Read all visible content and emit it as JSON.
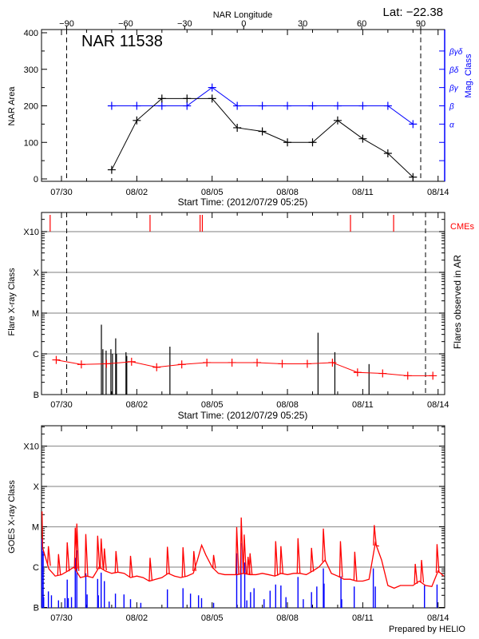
{
  "header": {
    "lat_label": "Lat: −22.38"
  },
  "chart_data": [
    {
      "type": "line",
      "title": "NAR 11538",
      "top_axis_label": "NAR Longitude",
      "top_ticks": [
        -90,
        -60,
        -30,
        0,
        30,
        60,
        90
      ],
      "limb_longitudes": [
        -90,
        90
      ],
      "xlabel": "Start Time: (2012/07/29 05:25)",
      "x_ticks": [
        "07/30",
        "08/02",
        "08/05",
        "08/08",
        "08/11",
        "08/14"
      ],
      "ylabel": "NAR Area",
      "ylim": [
        0,
        400
      ],
      "y_ticks": [
        0,
        100,
        200,
        300,
        400
      ],
      "y2label": "Mag. Class",
      "y2_ticks": [
        "α",
        "β",
        "βγ",
        "βδ",
        "βγδ"
      ],
      "colors": {
        "area": "#000000",
        "mag": "#0000ff"
      },
      "x": [
        "08-01 00:00",
        "08-02 00:00",
        "08-03 00:00",
        "08-04 00:00",
        "08-05 00:00",
        "08-06 00:00",
        "08-07 00:00",
        "08-08 00:00",
        "08-09 00:00",
        "08-10 00:00",
        "08-11 00:00",
        "08-12 00:00",
        "08-13 00:00"
      ],
      "series": [
        {
          "key": "area",
          "values": [
            25,
            160,
            220,
            220,
            220,
            140,
            130,
            100,
            100,
            160,
            110,
            70,
            5
          ]
        },
        {
          "key": "mag",
          "values": [
            "β",
            "β",
            "β",
            "β",
            "βγ",
            "β",
            "β",
            "β",
            "β",
            "β",
            "β",
            "β",
            "α"
          ]
        }
      ]
    },
    {
      "type": "line",
      "xlabel": "Start Time: (2012/07/29 05:25)",
      "x_ticks": [
        "07/30",
        "08/02",
        "08/05",
        "08/08",
        "08/11",
        "08/14"
      ],
      "ylabel": "Flare X-ray Class",
      "y2label": "Flares observed in AR",
      "cme_label": "CMEs",
      "y_scale": "log",
      "y_levels": [
        {
          "label": "B",
          "flux": 1e-07
        },
        {
          "label": "C",
          "flux": 1e-06
        },
        {
          "label": "M",
          "flux": 1e-05
        },
        {
          "label": "X",
          "flux": 0.0001
        },
        {
          "label": "X10",
          "flux": 0.001
        }
      ],
      "colors": {
        "background": "#ff0000",
        "flares": "#000000",
        "cme": "#ff0000",
        "grid": "#999999"
      },
      "limb_times": [
        "07-30 05:00",
        "08-13 12:00"
      ],
      "cmes": [
        "07-29 13:10",
        "08-02 12:40",
        "08-04 12:30",
        "08-04 14:40",
        "08-10 12:15",
        "08-12 05:30"
      ],
      "background": {
        "x": [
          "07-29 19:00",
          "07-30 19:00",
          "07-31 19:00",
          "08-01 19:00",
          "08-02 19:00",
          "08-03 19:00",
          "08-04 19:00",
          "08-05 19:00",
          "08-06 19:00",
          "08-07 19:00",
          "08-08 19:00",
          "08-09 19:00",
          "08-10 19:00",
          "08-11 19:00",
          "08-12 19:00",
          "08-13 19:00"
        ],
        "flux": [
          7.1e-07,
          5.5e-07,
          5.7e-07,
          6.4e-07,
          4.7e-07,
          5.5e-07,
          6.1e-07,
          6.1e-07,
          6.1e-07,
          5.7e-07,
          5.7e-07,
          6.1e-07,
          3.5e-07,
          3.3e-07,
          2.9e-07,
          2.9e-07
        ]
      },
      "flares": [
        {
          "t": "07-31 14:10",
          "flux": 5.2e-06
        },
        {
          "t": "07-31 15:35",
          "flux": 1.3e-06
        },
        {
          "t": "07-31 18:40",
          "flux": 1.2e-06
        },
        {
          "t": "07-31 23:15",
          "flux": 1.3e-06
        },
        {
          "t": "08-01 00:45",
          "flux": 1e-06
        },
        {
          "t": "08-01 03:50",
          "flux": 2.4e-06
        },
        {
          "t": "08-01 04:35",
          "flux": 1e-06
        },
        {
          "t": "08-01 13:40",
          "flux": 1.1e-06
        },
        {
          "t": "08-01 14:25",
          "flux": 8.9e-07
        },
        {
          "t": "08-03 07:40",
          "flux": 1.5e-06
        },
        {
          "t": "08-09 05:15",
          "flux": 3.3e-06
        },
        {
          "t": "08-09 21:20",
          "flux": 1.1e-06
        },
        {
          "t": "08-11 06:00",
          "flux": 5.6e-07
        }
      ]
    },
    {
      "type": "line",
      "x_ticks": [
        "07/30",
        "08/02",
        "08/05",
        "08/08",
        "08/11",
        "08/14"
      ],
      "ylabel": "GOES X-ray Class",
      "y_scale": "log",
      "y_levels": [
        {
          "label": "B",
          "flux": 1e-07
        },
        {
          "label": "C",
          "flux": 1e-06
        },
        {
          "label": "M",
          "flux": 1e-05
        },
        {
          "label": "X",
          "flux": 0.0001
        },
        {
          "label": "X10",
          "flux": 0.001
        }
      ],
      "colors": {
        "long": "#ff0000",
        "short": "#0000ff",
        "grid": "#999999"
      },
      "long_baseline": {
        "x": [
          "07-29 05:25",
          "07-29 06:00",
          "07-29 12:00",
          "07-29 18:00",
          "07-30 00:00",
          "07-30 06:00",
          "07-30 12:00",
          "07-30 18:00",
          "07-31 00:00",
          "07-31 06:00",
          "07-31 12:00",
          "07-31 18:00",
          "08-01 00:00",
          "08-01 06:00",
          "08-01 12:00",
          "08-01 18:00",
          "08-02 00:00",
          "08-02 06:00",
          "08-02 12:00",
          "08-02 18:00",
          "08-03 00:00",
          "08-03 06:00",
          "08-03 12:00",
          "08-03 18:00",
          "08-04 00:00",
          "08-04 06:00",
          "08-04 10:00",
          "08-04 14:00",
          "08-04 18:00",
          "08-05 00:00",
          "08-05 06:00",
          "08-05 12:00",
          "08-05 18:00",
          "08-06 00:00",
          "08-06 06:00",
          "08-06 12:00",
          "08-06 18:00",
          "08-07 00:00",
          "08-07 06:00",
          "08-07 12:00",
          "08-07 18:00",
          "08-08 00:00",
          "08-08 06:00",
          "08-08 12:00",
          "08-08 18:00",
          "08-09 00:00",
          "08-09 06:00",
          "08-09 12:00",
          "08-09 18:00",
          "08-10 00:00",
          "08-10 06:00",
          "08-10 12:00",
          "08-10 18:00",
          "08-11 00:00",
          "08-11 06:00",
          "08-11 12:00",
          "08-11 18:00",
          "08-12 00:00",
          "08-12 06:00",
          "08-12 12:00",
          "08-12 18:00",
          "08-13 00:00",
          "08-13 06:00",
          "08-13 12:00",
          "08-13 18:00",
          "08-14 00:00",
          "08-14 05:25"
        ],
        "flux": [
          2.4e-05,
          3e-06,
          9e-07,
          6e-07,
          6.5e-07,
          8e-07,
          1e-06,
          5.5e-07,
          6e-07,
          5.5e-07,
          1e-06,
          8e-07,
          7e-07,
          7.5e-07,
          7e-07,
          5.5e-07,
          6e-07,
          5.5e-07,
          4.5e-07,
          5e-07,
          5.5e-07,
          7e-07,
          6e-07,
          5.5e-07,
          6e-07,
          7e-07,
          1.5e-06,
          3.5e-06,
          2e-06,
          1e-06,
          7e-07,
          6.5e-07,
          6.5e-07,
          6.5e-07,
          7e-07,
          6.5e-07,
          6.5e-07,
          7e-07,
          6.5e-07,
          6e-07,
          7e-07,
          6.5e-07,
          7e-07,
          7e-07,
          6.5e-07,
          8e-07,
          1e-06,
          1.5e-06,
          7e-07,
          6e-07,
          5e-07,
          5e-07,
          4.5e-07,
          4.5e-07,
          5e-07,
          4e-06,
          1.5e-06,
          3.5e-07,
          3e-07,
          3.5e-07,
          3.5e-07,
          3.5e-07,
          4.5e-07,
          3.5e-07,
          3.3e-07,
          8e-07,
          6e-07
        ]
      },
      "long_spikes": [
        {
          "t": "07-29 11:30",
          "flux": 3.3e-06
        },
        {
          "t": "07-29 21:10",
          "flux": 2.1e-06
        },
        {
          "t": "07-30 05:30",
          "flux": 4.1e-06
        },
        {
          "t": "07-30 13:10",
          "flux": 9.5e-06
        },
        {
          "t": "07-30 14:40",
          "flux": 1.2e-05
        },
        {
          "t": "07-30 23:15",
          "flux": 6.6e-06
        },
        {
          "t": "07-31 10:35",
          "flux": 6e-06
        },
        {
          "t": "07-31 13:55",
          "flux": 5.1e-06
        },
        {
          "t": "07-31 17:00",
          "flux": 2.9e-06
        },
        {
          "t": "08-01 04:05",
          "flux": 2.5e-06
        },
        {
          "t": "08-01 18:00",
          "flux": 1.9e-06
        },
        {
          "t": "08-02 12:40",
          "flux": 1.7e-06
        },
        {
          "t": "08-03 05:15",
          "flux": 3.2e-06
        },
        {
          "t": "08-03 20:10",
          "flux": 3.1e-06
        },
        {
          "t": "08-04 06:30",
          "flux": 2.5e-06
        },
        {
          "t": "08-05 01:25",
          "flux": 2e-06
        },
        {
          "t": "08-05 23:30",
          "flux": 9.8e-06
        },
        {
          "t": "08-06 03:50",
          "flux": 1.7e-05
        },
        {
          "t": "08-06 06:40",
          "flux": 6.4e-06
        },
        {
          "t": "08-06 10:20",
          "flux": 1.8e-06
        },
        {
          "t": "08-06 12:15",
          "flux": 2.2e-06
        },
        {
          "t": "08-07 12:45",
          "flux": 4.4e-06
        },
        {
          "t": "08-07 17:45",
          "flux": 3.3e-06
        },
        {
          "t": "08-08 10:05",
          "flux": 5.2e-06
        },
        {
          "t": "08-08 23:00",
          "flux": 3e-06
        },
        {
          "t": "08-09 10:20",
          "flux": 9e-06
        },
        {
          "t": "08-10 02:40",
          "flux": 4.4e-06
        },
        {
          "t": "08-10 16:20",
          "flux": 2.4e-06
        },
        {
          "t": "08-11 11:00",
          "flux": 1.1e-05
        },
        {
          "t": "08-11 13:40",
          "flux": 3.4e-06
        },
        {
          "t": "08-13 02:10",
          "flux": 1.2e-06
        },
        {
          "t": "08-13 08:10",
          "flux": 1.5e-06
        },
        {
          "t": "08-13 23:00",
          "flux": 3.7e-06
        }
      ],
      "short_spikes": [
        {
          "t": "07-29 05:20",
          "flux": 5e-06
        },
        {
          "t": "07-29 06:30",
          "flux": 2.5e-06
        },
        {
          "t": "07-29 07:00",
          "flux": 1.8e-07
        },
        {
          "t": "07-29 11:30",
          "flux": 2.5e-07
        },
        {
          "t": "07-29 14:25",
          "flux": 2e-07
        },
        {
          "t": "07-29 21:10",
          "flux": 1.5e-07
        },
        {
          "t": "07-30 03:20",
          "flux": 1.7e-07
        },
        {
          "t": "07-30 05:30",
          "flux": 4.9e-07
        },
        {
          "t": "07-30 06:30",
          "flux": 1.7e-07
        },
        {
          "t": "07-30 09:35",
          "flux": 1.8e-07
        },
        {
          "t": "07-30 13:10",
          "flux": 1.7e-06
        },
        {
          "t": "07-30 14:40",
          "flux": 2.6e-06
        },
        {
          "t": "07-30 23:15",
          "flux": 7e-07
        },
        {
          "t": "07-31 00:30",
          "flux": 2.1e-07
        },
        {
          "t": "07-31 10:35",
          "flux": 5.1e-07
        },
        {
          "t": "07-31 11:15",
          "flux": 2e-07
        },
        {
          "t": "07-31 13:55",
          "flux": 7.3e-07
        },
        {
          "t": "07-31 17:00",
          "flux": 4.5e-07
        },
        {
          "t": "07-31 21:35",
          "flux": 1.4e-07
        },
        {
          "t": "08-01 03:35",
          "flux": 2.2e-07
        },
        {
          "t": "08-01 11:45",
          "flux": 2.1e-07
        },
        {
          "t": "08-01 18:00",
          "flux": 1.6e-07
        },
        {
          "t": "08-02 03:50",
          "flux": 1.3e-07
        },
        {
          "t": "08-03 05:15",
          "flux": 2.8e-07
        },
        {
          "t": "08-03 20:10",
          "flux": 3e-07
        },
        {
          "t": "08-04 03:20",
          "flux": 2.2e-07
        },
        {
          "t": "08-04 11:00",
          "flux": 2e-07
        },
        {
          "t": "08-04 13:55",
          "flux": 1.7e-07
        },
        {
          "t": "08-05 01:25",
          "flux": 1.3e-07
        },
        {
          "t": "08-05 23:30",
          "flux": 2.2e-06
        },
        {
          "t": "08-06 03:35",
          "flux": 3.9e-06
        },
        {
          "t": "08-06 07:10",
          "flux": 1.3e-06
        },
        {
          "t": "08-06 09:10",
          "flux": 1.5e-07
        },
        {
          "t": "08-06 12:45",
          "flux": 2.4e-07
        },
        {
          "t": "08-06 16:05",
          "flux": 3e-07
        },
        {
          "t": "08-07 01:40",
          "flux": 1.6e-07
        },
        {
          "t": "08-07 07:25",
          "flux": 2.6e-07
        },
        {
          "t": "08-07 12:45",
          "flux": 3.7e-07
        },
        {
          "t": "08-07 17:45",
          "flux": 3.5e-07
        },
        {
          "t": "08-07 22:35",
          "flux": 1.8e-07
        },
        {
          "t": "08-08 10:05",
          "flux": 5.7e-07
        },
        {
          "t": "08-08 15:10",
          "flux": 1.6e-07
        },
        {
          "t": "08-08 23:00",
          "flux": 2.4e-07
        },
        {
          "t": "08-09 04:05",
          "flux": 3.3e-07
        },
        {
          "t": "08-09 10:20",
          "flux": 9.3e-07
        },
        {
          "t": "08-09 11:00",
          "flux": 3.9e-07
        },
        {
          "t": "08-10 03:10",
          "flux": 5.9e-07
        },
        {
          "t": "08-10 03:50",
          "flux": 1.6e-07
        },
        {
          "t": "08-10 15:50",
          "flux": 3.3e-07
        },
        {
          "t": "08-11 10:05",
          "flux": 9.3e-07
        },
        {
          "t": "08-11 12:00",
          "flux": 3.3e-07
        },
        {
          "t": "08-13 11:00",
          "flux": 3.5e-07
        },
        {
          "t": "08-13 23:00",
          "flux": 3.7e-07
        }
      ]
    }
  ],
  "footer": {
    "credit": "Prepared by HELIO"
  }
}
